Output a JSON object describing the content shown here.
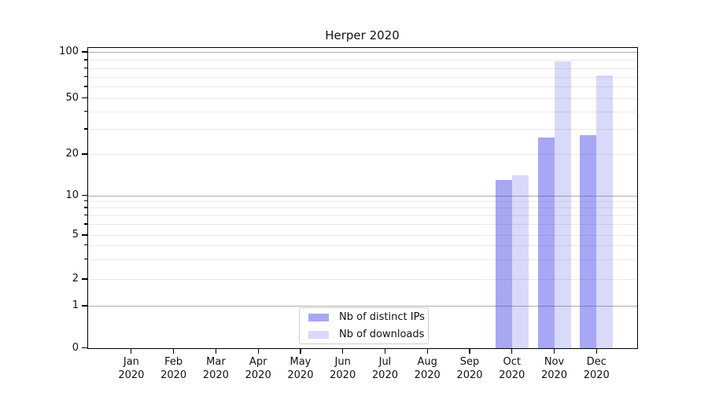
{
  "chart_data": {
    "type": "bar",
    "title": "Herper 2020",
    "categories": [
      "Jan 2020",
      "Feb 2020",
      "Mar 2020",
      "Apr 2020",
      "May 2020",
      "Jun 2020",
      "Jul 2020",
      "Aug 2020",
      "Sep 2020",
      "Oct 2020",
      "Nov 2020",
      "Dec 2020"
    ],
    "series": [
      {
        "name": "Nb of distinct IPs",
        "color": "rgba(64,64,232,0.46)",
        "values": [
          0,
          0,
          0,
          0,
          0,
          0,
          0,
          0,
          0,
          13,
          26,
          27
        ]
      },
      {
        "name": "Nb of downloads",
        "color": "rgba(64,64,232,0.20)",
        "values": [
          0,
          0,
          0,
          0,
          0,
          0,
          0,
          0,
          0,
          14,
          88,
          71
        ]
      }
    ],
    "y_axis": {
      "scale": "symlog",
      "tick_labels": [
        0,
        1,
        2,
        5,
        10,
        20,
        50,
        100
      ],
      "major_gridlines": [
        1,
        10,
        100
      ],
      "minor_gridlines": [
        2,
        3,
        4,
        5,
        6,
        7,
        8,
        9,
        20,
        30,
        40,
        50,
        60,
        70,
        80,
        90
      ],
      "minor_ticks": [
        3,
        4,
        6,
        7,
        8,
        9,
        30,
        40,
        60,
        70,
        80,
        90
      ]
    },
    "legend": {
      "entries": [
        "Nb of distinct IPs",
        "Nb of downloads"
      ],
      "position": "lower center"
    }
  },
  "colors": {
    "bar_distinct_ips": "rgba(64,64,232,0.46)",
    "bar_downloads": "rgba(64,64,232,0.20)",
    "grid_major": "#adadad",
    "grid_minor": "#e9e9e9",
    "axis": "#000000",
    "legend_border": "#cfcfcf"
  }
}
